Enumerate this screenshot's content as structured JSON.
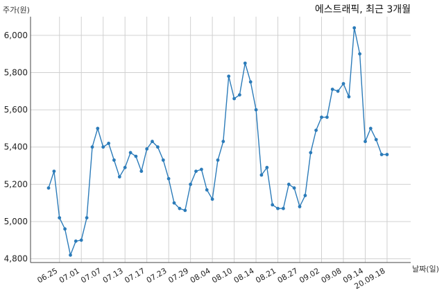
{
  "chart_data": {
    "type": "line",
    "title": "에스트래픽, 최근 3개월",
    "ylabel": "주가(원)",
    "xlabel": "날짜(일)",
    "ylim": [
      4780,
      6100
    ],
    "yticks": [
      4800,
      5000,
      5200,
      5400,
      5600,
      5800,
      6000
    ],
    "ytick_labels": [
      "4,800",
      "5,000",
      "5,200",
      "5,400",
      "5,600",
      "5,800",
      "6,000"
    ],
    "grid": true,
    "xtick_labels": [
      {
        "index": 2,
        "label": "06.25"
      },
      {
        "index": 6,
        "label": "07.01"
      },
      {
        "index": 10,
        "label": "07.07"
      },
      {
        "index": 14,
        "label": "07.13"
      },
      {
        "index": 18,
        "label": "07.17"
      },
      {
        "index": 22,
        "label": "07.23"
      },
      {
        "index": 26,
        "label": "07.29"
      },
      {
        "index": 30,
        "label": "08.04"
      },
      {
        "index": 34,
        "label": "08.10"
      },
      {
        "index": 38,
        "label": "08.14"
      },
      {
        "index": 42,
        "label": "08.21"
      },
      {
        "index": 46,
        "label": "08.27"
      },
      {
        "index": 50,
        "label": "09.02"
      },
      {
        "index": 54,
        "label": "09.08"
      },
      {
        "index": 58,
        "label": "09.14"
      },
      {
        "index": 62,
        "label": "20.09.18"
      }
    ],
    "series": [
      {
        "values": [
          5180,
          5270,
          5020,
          4960,
          4820,
          4895,
          4900,
          5020,
          5400,
          5500,
          5400,
          5420,
          5330,
          5240,
          5290,
          5370,
          5350,
          5270,
          5390,
          5430,
          5400,
          5330,
          5230,
          5100,
          5070,
          5060,
          5200,
          5270,
          5280,
          5170,
          5120,
          5330,
          5430,
          5780,
          5660,
          5680,
          5850,
          5750,
          5600,
          5250,
          5290,
          5090,
          5070,
          5070,
          5200,
          5180,
          5080,
          5140,
          5370,
          5490,
          5560,
          5560,
          5710,
          5700,
          5740,
          5670,
          6040,
          5900,
          5430,
          5500,
          5440,
          5360,
          5360
        ],
        "color": "#2b7bb9"
      }
    ]
  }
}
